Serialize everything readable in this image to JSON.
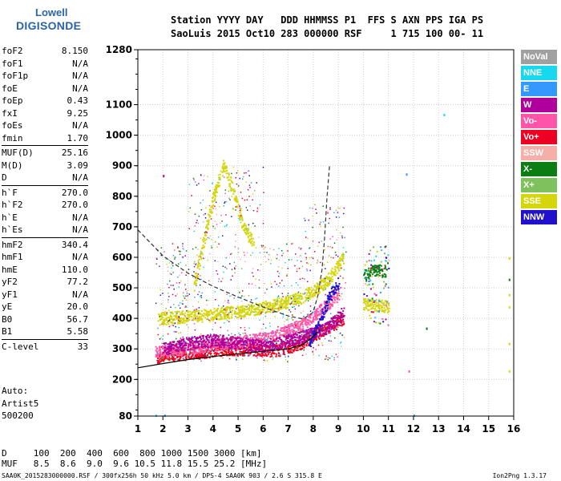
{
  "logo": {
    "line1": "Lowell",
    "line2": "DIGISONDE"
  },
  "header": {
    "row1": "Station YYYY DAY   DDD HHMMSS P1  FFS S AXN PPS IGA PS",
    "row2": "SaoLuis 2015 Oct10 283 000000 RSF     1 715 100 00- 11"
  },
  "params": [
    {
      "key": "foF2",
      "val": "8.150"
    },
    {
      "key": "foF1",
      "val": "N/A"
    },
    {
      "key": "foF1p",
      "val": "N/A"
    },
    {
      "key": "foE",
      "val": "N/A"
    },
    {
      "key": "foEp",
      "val": "0.43"
    },
    {
      "key": "fxI",
      "val": "9.25"
    },
    {
      "key": "foEs",
      "val": "N/A"
    },
    {
      "key": "fmin",
      "val": "1.70"
    },
    {
      "key": "MUF(D)",
      "val": "25.16"
    },
    {
      "key": "M(D)",
      "val": "3.09"
    },
    {
      "key": "D",
      "val": "N/A"
    },
    {
      "key": "h`F",
      "val": "270.0"
    },
    {
      "key": "h`F2",
      "val": "270.0"
    },
    {
      "key": "h`E",
      "val": "N/A"
    },
    {
      "key": "h`Es",
      "val": "N/A"
    },
    {
      "key": "hmF2",
      "val": "340.4"
    },
    {
      "key": "hmF1",
      "val": "N/A"
    },
    {
      "key": "hmE",
      "val": "110.0"
    },
    {
      "key": "yF2",
      "val": "77.2"
    },
    {
      "key": "yF1",
      "val": "N/A"
    },
    {
      "key": "yE",
      "val": "20.0"
    },
    {
      "key": "B0",
      "val": "56.7"
    },
    {
      "key": "B1",
      "val": "5.58"
    },
    {
      "key": "C-level",
      "val": "33"
    }
  ],
  "auto": {
    "l1": "Auto:",
    "l2": "Artist5",
    "l3": "500200"
  },
  "legend": [
    {
      "label": "NoVal",
      "color": "#a0a0a0"
    },
    {
      "label": "NNE",
      "color": "#17d8ef"
    },
    {
      "label": "E",
      "color": "#3399ff"
    },
    {
      "label": "W",
      "color": "#b0009c"
    },
    {
      "label": "Vo-",
      "color": "#ff55a8"
    },
    {
      "label": "Vo+",
      "color": "#ee0022"
    },
    {
      "label": "SSW",
      "color": "#f4b0a8"
    },
    {
      "label": "X-",
      "color": "#0b7d12"
    },
    {
      "label": "X+",
      "color": "#7fc25d"
    },
    {
      "label": "SSE",
      "color": "#d4d60b"
    },
    {
      "label": "NNW",
      "color": "#2211cc"
    }
  ],
  "bottom": {
    "d_row": "D     100  200  400  600  800 1000 1500 3000 [km]",
    "muf_row": "MUF   8.5  8.6  9.0  9.6 10.5 11.8 15.5 25.2 [MHz]"
  },
  "footer": {
    "left": "SAA0K_2015283000000.RSF / 300fx256h 50 kHz 5.0 km / DPS-4 SAA0K 903 / 2.6 S 315.8 E",
    "right": "Ion2Png 1.3.17"
  },
  "chart_data": {
    "type": "scatter",
    "xlabel": "",
    "ylabel": "",
    "xlim": [
      1,
      16
    ],
    "ylim": [
      80,
      1280
    ],
    "xticks": [
      "1",
      "2",
      "3",
      "4",
      "5",
      "6",
      "7",
      "8",
      "9",
      "10",
      "11",
      "12",
      "13",
      "14",
      "15",
      "16"
    ],
    "yticks": [
      {
        "v": 80,
        "label": "80"
      },
      {
        "v": 200,
        "label": "200"
      },
      {
        "v": 300,
        "label": "300"
      },
      {
        "v": 400,
        "label": "400"
      },
      {
        "v": 500,
        "label": "500"
      },
      {
        "v": 600,
        "label": "600"
      },
      {
        "v": 700,
        "label": "700"
      },
      {
        "v": 800,
        "label": "800"
      },
      {
        "v": 900,
        "label": "900"
      },
      {
        "v": 1000,
        "label": "1000"
      },
      {
        "v": 1100,
        "label": "1100"
      },
      {
        "v": 1280,
        "label": "1280"
      }
    ],
    "grid": true,
    "trace_series": [
      {
        "color": "#ee0022",
        "points": [
          [
            1.7,
            275
          ],
          [
            2.5,
            282
          ],
          [
            3.5,
            290
          ],
          [
            4.5,
            300
          ],
          [
            5.5,
            300
          ],
          [
            6.5,
            295
          ],
          [
            7.5,
            320
          ],
          [
            8.3,
            360
          ],
          [
            9.0,
            390
          ],
          [
            9.2,
            400
          ]
        ]
      },
      {
        "color": "#ff55a8",
        "points": [
          [
            1.7,
            290
          ],
          [
            2.5,
            300
          ],
          [
            3.5,
            310
          ],
          [
            4.5,
            320
          ],
          [
            5.5,
            330
          ],
          [
            6.5,
            345
          ],
          [
            7.5,
            380
          ],
          [
            8.3,
            430
          ],
          [
            9.0,
            480
          ]
        ]
      },
      {
        "color": "#d4d60b",
        "points": [
          [
            1.8,
            400
          ],
          [
            2.5,
            405
          ],
          [
            3.5,
            410
          ],
          [
            4.5,
            420
          ],
          [
            5.5,
            430
          ],
          [
            6.5,
            445
          ],
          [
            7.5,
            470
          ],
          [
            8.5,
            520
          ],
          [
            9.2,
            600
          ]
        ]
      },
      {
        "color": "#d4d60b",
        "points": [
          [
            3.2,
            500
          ],
          [
            3.6,
            650
          ],
          [
            4.0,
            800
          ],
          [
            4.4,
            900
          ],
          [
            4.8,
            820
          ],
          [
            5.2,
            700
          ],
          [
            5.6,
            650
          ]
        ]
      },
      {
        "color": "#b0009c",
        "points": [
          [
            2.0,
            300
          ],
          [
            3.0,
            320
          ],
          [
            4.0,
            330
          ],
          [
            5.0,
            320
          ],
          [
            6.0,
            310
          ],
          [
            7.5,
            340
          ],
          [
            8.5,
            370
          ],
          [
            9.2,
            420
          ]
        ]
      },
      {
        "color": "#2211cc",
        "points": [
          [
            7.8,
            320
          ],
          [
            8.2,
            380
          ],
          [
            8.6,
            470
          ],
          [
            9.0,
            520
          ]
        ]
      },
      {
        "color": "#0b7d12",
        "points": [
          [
            10.0,
            540
          ],
          [
            10.4,
            560
          ],
          [
            10.9,
            555
          ]
        ]
      },
      {
        "color": "#d4d60b",
        "points": [
          [
            10.0,
            450
          ],
          [
            10.5,
            445
          ],
          [
            11.0,
            440
          ]
        ]
      }
    ],
    "scaled_curves": [
      {
        "name": "true-height",
        "style": "solid",
        "points": [
          [
            1,
            238
          ],
          [
            2,
            252
          ],
          [
            3,
            265
          ],
          [
            4,
            275
          ],
          [
            5,
            284
          ],
          [
            6,
            292
          ],
          [
            7,
            300
          ],
          [
            7.6,
            315
          ],
          [
            8.0,
            340
          ],
          [
            8.15,
            355
          ]
        ]
      },
      {
        "name": "MUF-dashed",
        "style": "dashed",
        "points": [
          [
            1,
            690
          ],
          [
            2,
            605
          ],
          [
            3,
            548
          ],
          [
            4,
            505
          ],
          [
            5,
            470
          ],
          [
            6,
            437
          ],
          [
            7,
            408
          ],
          [
            7.6,
            398
          ],
          [
            8.0,
            420
          ],
          [
            8.2,
            480
          ],
          [
            8.35,
            560
          ],
          [
            8.45,
            660
          ],
          [
            8.55,
            800
          ],
          [
            8.65,
            900
          ]
        ]
      }
    ],
    "isolated_points": [
      {
        "x": 13.2,
        "y": 1070,
        "color": "#17d8ef"
      },
      {
        "x": 11.7,
        "y": 875,
        "color": "#3399ff"
      },
      {
        "x": 12.5,
        "y": 370,
        "color": "#0b7d12"
      },
      {
        "x": 11.8,
        "y": 230,
        "color": "#ff55a8"
      },
      {
        "x": 12.0,
        "y": 85,
        "color": "#3399ff"
      },
      {
        "x": 15.8,
        "y": 600,
        "color": "#d4d60b"
      },
      {
        "x": 15.8,
        "y": 530,
        "color": "#0b7d12"
      },
      {
        "x": 15.8,
        "y": 480,
        "color": "#d4d60b"
      },
      {
        "x": 15.8,
        "y": 440,
        "color": "#d4d60b"
      },
      {
        "x": 15.8,
        "y": 320,
        "color": "#d4d60b"
      },
      {
        "x": 15.8,
        "y": 230,
        "color": "#d4d60b"
      },
      {
        "x": 2.0,
        "y": 870,
        "color": "#b0009c"
      },
      {
        "x": 1.7,
        "y": 85,
        "color": "#17d8ef"
      },
      {
        "x": 2.05,
        "y": 85,
        "color": "#3399ff"
      }
    ]
  }
}
